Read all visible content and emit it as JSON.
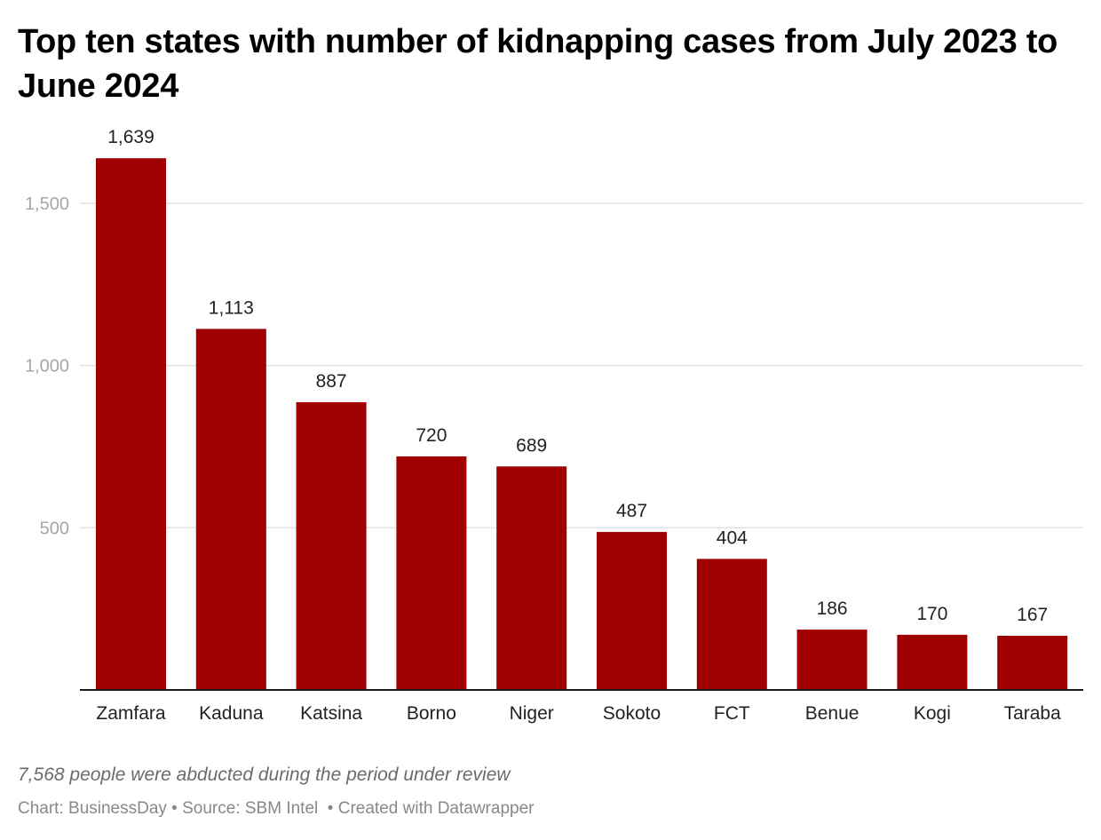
{
  "chart_data": {
    "type": "bar",
    "title": "Top ten states with number of kidnapping cases from July 2023 to June 2024",
    "xlabel": "",
    "ylabel": "",
    "categories": [
      "Zamfara",
      "Kaduna",
      "Katsina",
      "Borno",
      "Niger",
      "Sokoto",
      "FCT",
      "Benue",
      "Kogi",
      "Taraba"
    ],
    "values": [
      1639,
      1113,
      887,
      720,
      689,
      487,
      404,
      186,
      170,
      167
    ],
    "value_labels": [
      "1,639",
      "1,113",
      "887",
      "720",
      "689",
      "487",
      "404",
      "186",
      "170",
      "167"
    ],
    "ylim": [
      0,
      1639
    ],
    "yticks": [
      500,
      1000,
      1500
    ],
    "ytick_labels": [
      "500",
      "1,000",
      "1,500"
    ],
    "grid": true,
    "legend": "none",
    "bar_color": "#a00000"
  },
  "notes": "7,568 people were abducted during the period under review",
  "byline": {
    "chart": "Chart: BusinessDay",
    "sep1": " • ",
    "source": "Source: SBM Intel",
    "sep2": "  • ",
    "created": "Created with Datawrapper"
  },
  "colors": {
    "bar": "#a00000",
    "grid": "#e3e3e3",
    "axis": "#1a1a1a",
    "tick_label": "#a6a6a6",
    "value_label": "#222222",
    "category_label": "#222222"
  }
}
